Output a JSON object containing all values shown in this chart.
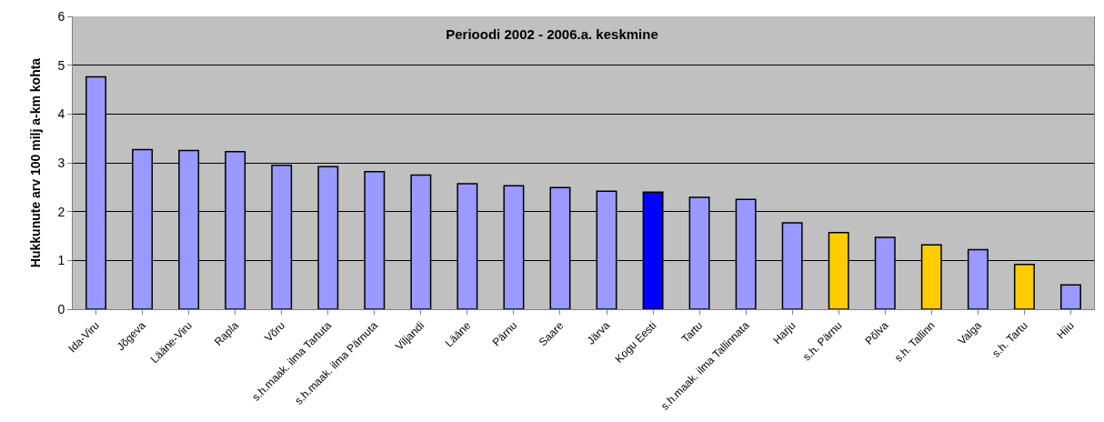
{
  "chart_data": {
    "type": "bar",
    "title": "Perioodi 2002 - 2006.a. keskmine",
    "ylabel": "Hukkunute arv 100 milj a-km kohta",
    "categories": [
      "Ida-Viru",
      "Jõgeva",
      "Lääne-Viru",
      "Rapla",
      "Võru",
      "s.h.maak. ilma Tartuta",
      "s.h.maak. ilma Pärnuta",
      "Viljandi",
      "Lääne",
      "Pärnu",
      "Saare",
      "Järva",
      "Kogu Eesti",
      "Tartu",
      "s.h.maak. ilma Tallinnata",
      "Harju",
      "s.h. Pärnu",
      "Põlva",
      "s.h. Tallinn",
      "Valga",
      "s.h. Tartu",
      "Hiiu"
    ],
    "values": [
      4.76,
      3.27,
      3.25,
      3.23,
      2.95,
      2.92,
      2.82,
      2.75,
      2.57,
      2.53,
      2.49,
      2.42,
      2.4,
      2.29,
      2.25,
      1.77,
      1.57,
      1.47,
      1.32,
      1.22,
      0.92,
      0.5
    ],
    "colors": [
      "#9999ff",
      "#9999ff",
      "#9999ff",
      "#9999ff",
      "#9999ff",
      "#9999ff",
      "#9999ff",
      "#9999ff",
      "#9999ff",
      "#9999ff",
      "#9999ff",
      "#9999ff",
      "#0000ff",
      "#9999ff",
      "#9999ff",
      "#9999ff",
      "#ffcc00",
      "#9999ff",
      "#ffcc00",
      "#9999ff",
      "#ffcc00",
      "#9999ff"
    ],
    "ylim": [
      0,
      6
    ],
    "yticks": [
      0,
      1,
      2,
      3,
      4,
      5,
      6
    ],
    "grid": "y"
  }
}
